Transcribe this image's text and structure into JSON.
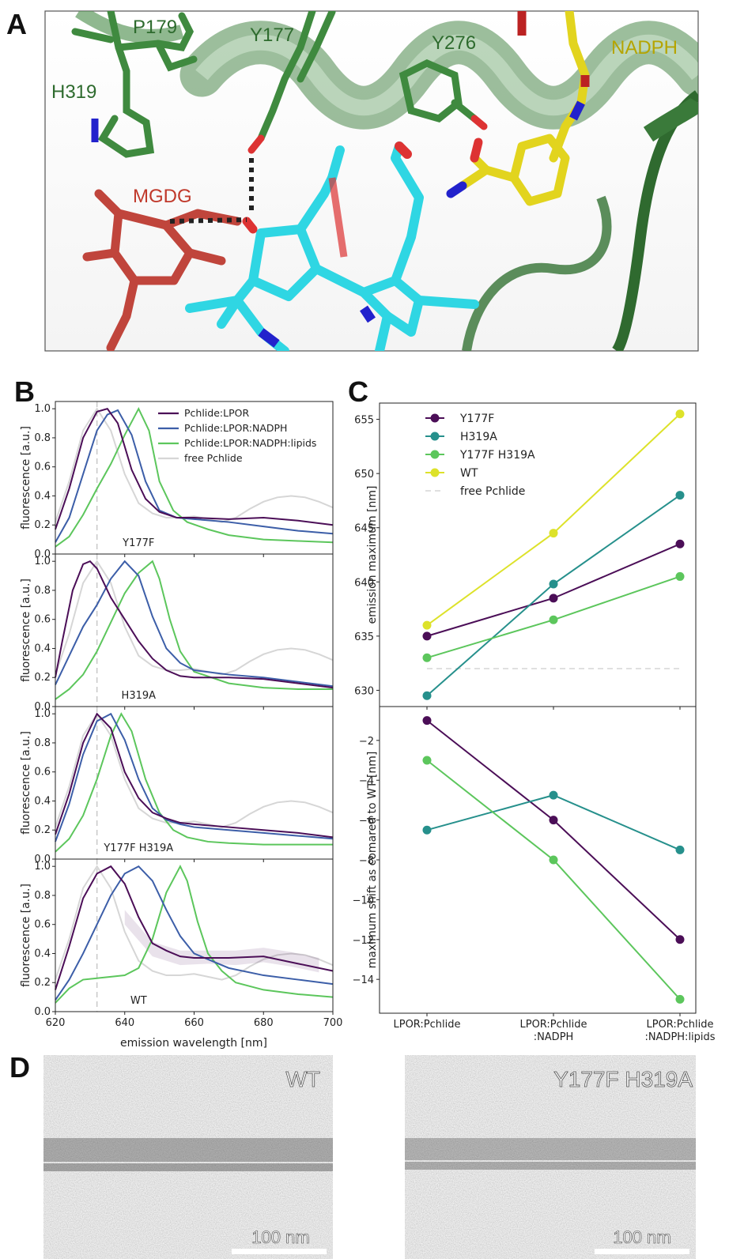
{
  "panels": {
    "a": "A",
    "b": "B",
    "c": "C",
    "d": "D"
  },
  "structure_labels": [
    {
      "text": "P179",
      "color": "#2e6b2e"
    },
    {
      "text": "Y177",
      "color": "#2e6b2e"
    },
    {
      "text": "Y276",
      "color": "#2e6b2e"
    },
    {
      "text": "NADPH",
      "color": "#b5a400"
    },
    {
      "text": "H319",
      "color": "#2e6b2e"
    },
    {
      "text": "MGDG",
      "color": "#c0392b"
    }
  ],
  "colors": {
    "pchlide_lpor": "#4b0e57",
    "pchlide_lpor_nadph": "#3c5ea8",
    "pchlide_lpor_nadph_lipids": "#5cc65c",
    "free_pchlide": "#d6d6d6",
    "y177f": "#4b0e57",
    "h319a": "#26908c",
    "y177f_h319a": "#5cc65c",
    "wt": "#dde22a"
  },
  "chart_data": [
    {
      "type": "line",
      "panel": "B",
      "xlabel": "emission wavelength [nm]",
      "ylabel": "fluorescence [a.u.]",
      "xlim": [
        620,
        700
      ],
      "ylim": [
        0,
        1.05
      ],
      "xticks": [
        "620",
        "640",
        "660",
        "680",
        "700"
      ],
      "yticks": [
        "0.0",
        "0.2",
        "0.4",
        "0.6",
        "0.8",
        "1.0"
      ],
      "vline_x": 632,
      "legend": [
        "Pchlide:LPOR",
        "Pchlide:LPOR:NADPH",
        "Pchlide:LPOR:NADPH:lipids",
        "free Pchlide"
      ],
      "free_pchlide": {
        "x": [
          620,
          624,
          628,
          632,
          636,
          640,
          644,
          648,
          652,
          656,
          660,
          664,
          668,
          672,
          676,
          680,
          684,
          688,
          692,
          696,
          700
        ],
        "y": [
          0.22,
          0.5,
          0.85,
          1.0,
          0.85,
          0.55,
          0.35,
          0.28,
          0.25,
          0.25,
          0.26,
          0.24,
          0.22,
          0.25,
          0.31,
          0.36,
          0.39,
          0.4,
          0.39,
          0.36,
          0.32
        ]
      },
      "subplots": [
        {
          "label": "Y177F",
          "series": [
            {
              "name": "Pchlide:LPOR",
              "x": [
                620,
                624,
                628,
                632,
                635,
                638,
                642,
                646,
                650,
                655,
                660,
                670,
                680,
                690,
                700
              ],
              "y": [
                0.17,
                0.45,
                0.8,
                0.98,
                1.0,
                0.9,
                0.58,
                0.38,
                0.29,
                0.25,
                0.25,
                0.24,
                0.25,
                0.23,
                0.2
              ]
            },
            {
              "name": "Pchlide:LPOR:NADPH",
              "x": [
                620,
                624,
                628,
                632,
                635,
                638,
                642,
                646,
                650,
                655,
                660,
                670,
                680,
                690,
                700
              ],
              "y": [
                0.08,
                0.25,
                0.55,
                0.85,
                0.96,
                0.99,
                0.82,
                0.5,
                0.3,
                0.25,
                0.24,
                0.22,
                0.19,
                0.16,
                0.14
              ]
            },
            {
              "name": "Pchlide:LPOR:NADPH:lipids",
              "x": [
                620,
                624,
                628,
                632,
                636,
                640,
                644,
                647,
                650,
                654,
                658,
                664,
                670,
                680,
                690,
                700
              ],
              "y": [
                0.05,
                0.12,
                0.27,
                0.45,
                0.62,
                0.82,
                1.0,
                0.85,
                0.5,
                0.3,
                0.22,
                0.17,
                0.13,
                0.1,
                0.09,
                0.08
              ]
            }
          ]
        },
        {
          "label": "H319A",
          "series": [
            {
              "name": "Pchlide:LPOR",
              "x": [
                620,
                622,
                625,
                628,
                630,
                632,
                636,
                640,
                644,
                648,
                652,
                656,
                660,
                670,
                680,
                690,
                700
              ],
              "y": [
                0.2,
                0.45,
                0.8,
                0.98,
                1.0,
                0.95,
                0.75,
                0.6,
                0.45,
                0.33,
                0.25,
                0.21,
                0.2,
                0.2,
                0.19,
                0.16,
                0.13
              ]
            },
            {
              "name": "Pchlide:LPOR:NADPH",
              "x": [
                620,
                624,
                628,
                632,
                636,
                640,
                644,
                648,
                652,
                656,
                660,
                670,
                680,
                690,
                700
              ],
              "y": [
                0.15,
                0.35,
                0.55,
                0.7,
                0.88,
                1.0,
                0.9,
                0.62,
                0.4,
                0.3,
                0.25,
                0.22,
                0.2,
                0.17,
                0.14
              ]
            },
            {
              "name": "Pchlide:LPOR:NADPH:lipids",
              "x": [
                620,
                624,
                628,
                632,
                636,
                640,
                644,
                648,
                650,
                653,
                656,
                660,
                670,
                680,
                690,
                700
              ],
              "y": [
                0.05,
                0.12,
                0.22,
                0.38,
                0.58,
                0.78,
                0.92,
                1.0,
                0.88,
                0.6,
                0.38,
                0.24,
                0.16,
                0.13,
                0.12,
                0.12
              ]
            }
          ]
        },
        {
          "label": "Y177F H319A",
          "series": [
            {
              "name": "Pchlide:LPOR",
              "x": [
                620,
                624,
                628,
                632,
                636,
                640,
                644,
                648,
                652,
                656,
                660,
                670,
                680,
                690,
                700
              ],
              "y": [
                0.17,
                0.45,
                0.8,
                1.0,
                0.9,
                0.6,
                0.42,
                0.32,
                0.28,
                0.25,
                0.24,
                0.22,
                0.2,
                0.18,
                0.15
              ]
            },
            {
              "name": "Pchlide:LPOR:NADPH",
              "x": [
                620,
                624,
                628,
                632,
                636,
                640,
                644,
                648,
                652,
                656,
                660,
                670,
                680,
                690,
                700
              ],
              "y": [
                0.12,
                0.38,
                0.72,
                0.95,
                1.0,
                0.82,
                0.55,
                0.35,
                0.27,
                0.24,
                0.22,
                0.2,
                0.18,
                0.16,
                0.14
              ]
            },
            {
              "name": "Pchlide:LPOR:NADPH:lipids",
              "x": [
                620,
                624,
                628,
                632,
                636,
                639,
                642,
                646,
                650,
                654,
                658,
                664,
                670,
                680,
                690,
                700
              ],
              "y": [
                0.05,
                0.14,
                0.3,
                0.55,
                0.85,
                1.0,
                0.88,
                0.55,
                0.32,
                0.2,
                0.15,
                0.12,
                0.11,
                0.1,
                0.1,
                0.1
              ]
            }
          ]
        },
        {
          "label": "WT",
          "band": {
            "x": [
              640,
              648,
              656,
              664,
              672,
              680,
              688,
              696
            ],
            "lo": [
              0.6,
              0.38,
              0.32,
              0.33,
              0.32,
              0.34,
              0.31,
              0.27
            ],
            "hi": [
              0.7,
              0.48,
              0.42,
              0.42,
              0.42,
              0.44,
              0.41,
              0.37
            ]
          },
          "series": [
            {
              "name": "Pchlide:LPOR",
              "x": [
                620,
                624,
                628,
                632,
                636,
                640,
                644,
                648,
                652,
                656,
                660,
                670,
                680,
                690,
                700
              ],
              "y": [
                0.15,
                0.45,
                0.78,
                0.95,
                1.0,
                0.88,
                0.65,
                0.47,
                0.42,
                0.38,
                0.37,
                0.37,
                0.38,
                0.33,
                0.28
              ]
            },
            {
              "name": "Pchlide:LPOR:NADPH",
              "x": [
                620,
                624,
                628,
                632,
                636,
                640,
                644,
                648,
                652,
                656,
                660,
                670,
                680,
                690,
                700
              ],
              "y": [
                0.08,
                0.22,
                0.4,
                0.6,
                0.8,
                0.95,
                1.0,
                0.9,
                0.7,
                0.52,
                0.4,
                0.3,
                0.25,
                0.22,
                0.19
              ]
            },
            {
              "name": "Pchlide:LPOR:NADPH:lipids",
              "x": [
                620,
                624,
                628,
                632,
                636,
                640,
                644,
                648,
                652,
                656,
                658,
                661,
                664,
                668,
                672,
                680,
                690,
                700
              ],
              "y": [
                0.06,
                0.16,
                0.22,
                0.23,
                0.24,
                0.25,
                0.3,
                0.5,
                0.82,
                1.0,
                0.9,
                0.62,
                0.4,
                0.28,
                0.2,
                0.15,
                0.12,
                0.1
              ]
            }
          ]
        }
      ]
    },
    {
      "type": "line",
      "panel": "C",
      "ylabel_top": "emission maximum [nm]",
      "ylabel_bottom": "maximum shift as comared to WT [nm]",
      "categories": [
        "LPOR:Pchlide",
        "LPOR:Pchlide\n:NADPH",
        "LPOR:Pchlide\n:NADPH:lipids"
      ],
      "top": {
        "ylim": [
          628.5,
          656.5
        ],
        "yticks": [
          "630",
          "635",
          "640",
          "645",
          "650",
          "655"
        ],
        "free_pchlide": 632,
        "series": [
          {
            "name": "Y177F",
            "values": [
              635,
              638.5,
              643.5
            ]
          },
          {
            "name": "H319A",
            "values": [
              629.5,
              639.8,
              648
            ]
          },
          {
            "name": "Y177F H319A",
            "values": [
              633,
              636.5,
              640.5
            ]
          },
          {
            "name": "WT",
            "values": [
              636,
              644.5,
              655.5
            ]
          }
        ],
        "legend": [
          "Y177F",
          "H319A",
          "Y177F H319A",
          "WT",
          "free Pchlide"
        ]
      },
      "bottom": {
        "ylim": [
          -15.7,
          -0.3
        ],
        "yticks": [
          "-2",
          "-4",
          "-6",
          "-8",
          "-10",
          "-12",
          "-14"
        ],
        "series": [
          {
            "name": "Y177F",
            "values": [
              -1,
              -6,
              -12
            ]
          },
          {
            "name": "H319A",
            "values": [
              -6.5,
              -4.75,
              -7.5
            ]
          },
          {
            "name": "Y177F H319A",
            "values": [
              -3,
              -8,
              -15
            ]
          }
        ]
      }
    }
  ],
  "micrographs": [
    {
      "label": "WT",
      "scalebar": "100 nm"
    },
    {
      "label": "Y177F H319A",
      "scalebar": "100 nm"
    }
  ]
}
